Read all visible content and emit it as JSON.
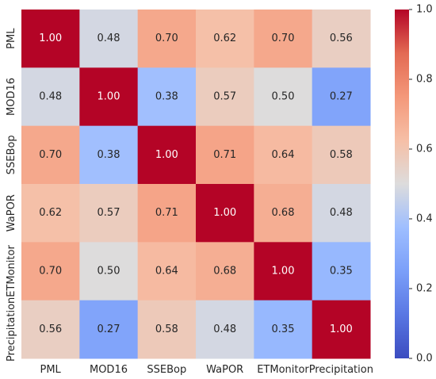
{
  "chart_data": {
    "type": "heatmap",
    "title": "",
    "xlabel": "",
    "ylabel": "",
    "x_labels": [
      "PML",
      "MOD16",
      "SSEBop",
      "WaPOR",
      "ETMonitor",
      "Precipitation"
    ],
    "y_labels": [
      "PML",
      "MOD16",
      "SSEBop",
      "WaPOR",
      "ETMonitor",
      "Precipitation"
    ],
    "values": [
      [
        1.0,
        0.48,
        0.7,
        0.62,
        0.7,
        0.56
      ],
      [
        0.48,
        1.0,
        0.38,
        0.57,
        0.5,
        0.27
      ],
      [
        0.7,
        0.38,
        1.0,
        0.71,
        0.64,
        0.58
      ],
      [
        0.62,
        0.57,
        0.71,
        1.0,
        0.68,
        0.48
      ],
      [
        0.7,
        0.5,
        0.64,
        0.68,
        1.0,
        0.35
      ],
      [
        0.56,
        0.27,
        0.58,
        0.48,
        0.35,
        1.0
      ]
    ],
    "value_format": "0.00",
    "colormap": "coolwarm",
    "vmin": 0.0,
    "vmax": 1.0,
    "colorbar_ticks": [
      0.0,
      0.2,
      0.4,
      0.6,
      0.8,
      1.0
    ],
    "colorbar_tick_labels": [
      "0.0",
      "0.2",
      "0.4",
      "0.6",
      "0.8",
      "1.0"
    ],
    "colorbar_position": "right",
    "grid": false
  }
}
